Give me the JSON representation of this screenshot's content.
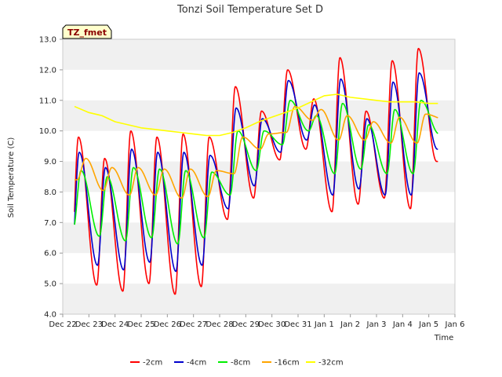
{
  "chart_data": {
    "type": "line",
    "title": "Tonzi Soil Temperature Set D",
    "xlabel": "Time",
    "ylabel": "Soil Temperature (C)",
    "ylim": [
      4.0,
      13.0
    ],
    "yticks": [
      "4.0",
      "5.0",
      "6.0",
      "7.0",
      "8.0",
      "9.0",
      "10.0",
      "11.0",
      "12.0",
      "13.0"
    ],
    "xlim": [
      0,
      15
    ],
    "xticks": [
      "Dec 22",
      "Dec 23",
      "Dec 24",
      "Dec 25",
      "Dec 26",
      "Dec 27",
      "Dec 28",
      "Dec 29",
      "Dec 30",
      "Dec 31",
      "Jan 1",
      "Jan 2",
      "Jan 3",
      "Jan 4",
      "Jan 5",
      "Jan 6"
    ],
    "grid": "horizontal bands",
    "legend_position": "bottom",
    "tag_label": "TZ_fmet",
    "x_start": 0.45,
    "x_end": 14.35,
    "series": [
      {
        "name": "-2cm",
        "color": "#ff0000",
        "daily_min": [
          4.9,
          4.95,
          4.75,
          5.0,
          4.65,
          4.9,
          7.1,
          7.8,
          9.05,
          9.4,
          7.35,
          7.6,
          7.8,
          7.45,
          9.0
        ],
        "daily_max": [
          9.8,
          9.1,
          10.0,
          9.8,
          9.9,
          9.8,
          11.45,
          10.65,
          12.0,
          11.05,
          12.4,
          10.65,
          12.3,
          12.7,
          9.0
        ]
      },
      {
        "name": "-4cm",
        "color": "#0000cc",
        "daily_min": [
          5.7,
          5.6,
          5.45,
          5.7,
          5.4,
          5.6,
          7.45,
          8.2,
          9.3,
          9.7,
          7.9,
          8.1,
          7.9,
          7.9,
          9.4
        ],
        "daily_max": [
          9.3,
          8.8,
          9.4,
          9.3,
          9.3,
          9.2,
          10.75,
          10.4,
          11.65,
          10.85,
          11.7,
          10.4,
          11.6,
          11.9,
          9.4
        ]
      },
      {
        "name": "-8cm",
        "color": "#00ee00",
        "daily_min": [
          6.8,
          6.55,
          6.4,
          6.5,
          6.3,
          6.5,
          7.9,
          8.7,
          9.55,
          10.0,
          8.6,
          8.75,
          8.6,
          8.6,
          9.9
        ],
        "daily_max": [
          8.7,
          8.5,
          8.8,
          8.75,
          8.7,
          8.65,
          10.0,
          10.0,
          11.0,
          10.5,
          10.9,
          10.2,
          10.7,
          11.0,
          9.9
        ]
      },
      {
        "name": "-16cm",
        "color": "#ffa500",
        "daily_min": [
          8.4,
          8.05,
          7.9,
          7.9,
          7.8,
          7.85,
          8.6,
          9.4,
          9.95,
          10.35,
          9.7,
          9.7,
          9.6,
          9.6,
          10.4
        ],
        "daily_max": [
          9.1,
          8.8,
          8.8,
          8.75,
          8.75,
          8.7,
          9.8,
          9.9,
          10.8,
          10.7,
          10.5,
          10.3,
          10.45,
          10.55,
          10.4
        ]
      },
      {
        "name": "-32cm",
        "color": "#ffff00",
        "points": [
          [
            0.45,
            10.8
          ],
          [
            1.0,
            10.6
          ],
          [
            1.5,
            10.5
          ],
          [
            2.0,
            10.3
          ],
          [
            2.5,
            10.2
          ],
          [
            3.0,
            10.1
          ],
          [
            3.5,
            10.05
          ],
          [
            4.0,
            10.0
          ],
          [
            4.5,
            9.95
          ],
          [
            5.0,
            9.9
          ],
          [
            5.5,
            9.85
          ],
          [
            6.0,
            9.85
          ],
          [
            6.5,
            9.95
          ],
          [
            7.0,
            10.1
          ],
          [
            7.5,
            10.3
          ],
          [
            8.0,
            10.45
          ],
          [
            8.5,
            10.6
          ],
          [
            9.0,
            10.75
          ],
          [
            9.5,
            10.95
          ],
          [
            10.0,
            11.15
          ],
          [
            10.5,
            11.2
          ],
          [
            11.0,
            11.1
          ],
          [
            11.5,
            11.05
          ],
          [
            12.0,
            11.0
          ],
          [
            12.5,
            10.95
          ],
          [
            13.0,
            10.95
          ],
          [
            13.5,
            10.95
          ],
          [
            14.0,
            10.9
          ],
          [
            14.35,
            10.9
          ]
        ]
      }
    ]
  }
}
